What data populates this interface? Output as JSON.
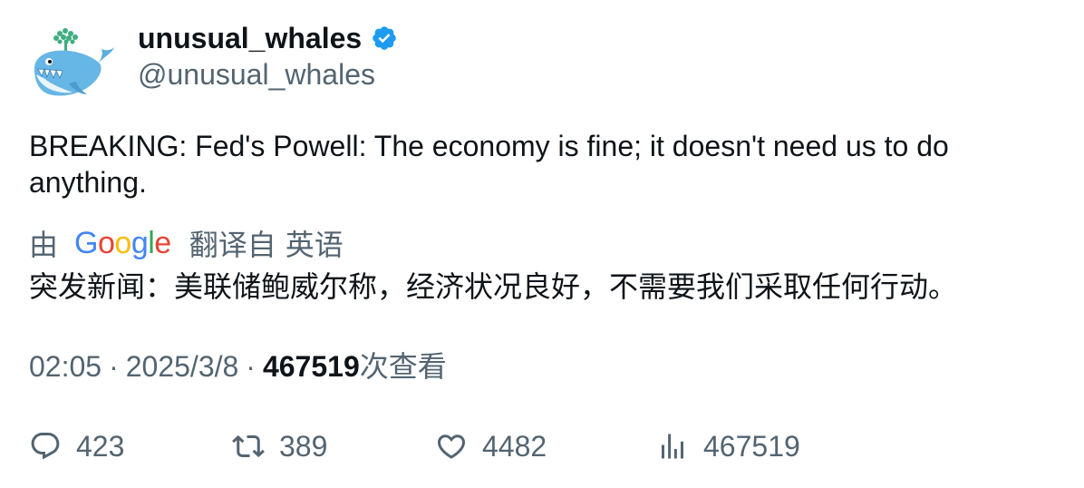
{
  "author": {
    "display_name": "unusual_whales",
    "handle": "@unusual_whales",
    "verified": true,
    "avatar_icon": "whale-logo-icon"
  },
  "tweet": {
    "text": "BREAKING: Fed's Powell: The economy is fine; it doesn't need us to do anything."
  },
  "translation": {
    "by_label": "由",
    "provider": "Google",
    "from_label": "翻译自",
    "language": "英语",
    "text": "突发新闻：美联储鲍威尔称，经济状况良好，不需要我们采取任何行动。"
  },
  "meta": {
    "time": "02:05",
    "separator": "·",
    "date": "2025/3/8",
    "views": "467519",
    "views_label": "次查看"
  },
  "actions": {
    "replies": "423",
    "retweets": "389",
    "likes": "4482",
    "views": "467519"
  },
  "colors": {
    "text_primary": "#0f1419",
    "text_secondary": "#536471",
    "verified_blue": "#1d9bf0"
  }
}
